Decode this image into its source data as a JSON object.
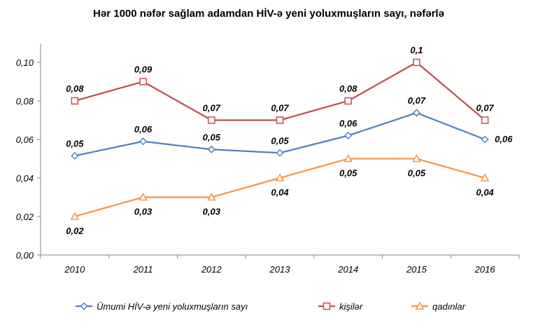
{
  "chart_data": {
    "type": "line",
    "title": "Hər 1000 nəfər sağlam adamdan HİV-ə yeni yoluxmuşların sayı, nəfərlə",
    "categories": [
      "2010",
      "2011",
      "2012",
      "2013",
      "2014",
      "2015",
      "2016"
    ],
    "ylim": [
      0,
      0.1
    ],
    "yticks": [
      "0,00",
      "0,02",
      "0,04",
      "0,06",
      "0,08",
      "0,10"
    ],
    "grid": false,
    "legend_position": "bottom",
    "series": [
      {
        "name": "Ümumi HİV-ə yeni yoluxmuşların sayı",
        "color": "#4F81BD",
        "marker": "diamond",
        "values": [
          0.0515,
          0.059,
          0.0548,
          0.053,
          0.062,
          0.0738,
          0.06
        ],
        "labels": [
          "0,05",
          "0,06",
          "0,05",
          "0,05",
          "0,06",
          "0,07",
          "0,06"
        ]
      },
      {
        "name": "kişilər",
        "color": "#C0504D",
        "marker": "square",
        "values": [
          0.08,
          0.09,
          0.07,
          0.07,
          0.08,
          0.1,
          0.07
        ],
        "labels": [
          "0,08",
          "0,09",
          "0,07",
          "0,07",
          "0,08",
          "0,1",
          "0,07"
        ]
      },
      {
        "name": "qadınlar",
        "color": "#F79646",
        "marker": "triangle",
        "values": [
          0.02,
          0.03,
          0.03,
          0.04,
          0.05,
          0.05,
          0.04
        ],
        "labels": [
          "0,02",
          "0,03",
          "0,03",
          "0,04",
          "0,05",
          "0,05",
          "0,04"
        ]
      }
    ]
  }
}
